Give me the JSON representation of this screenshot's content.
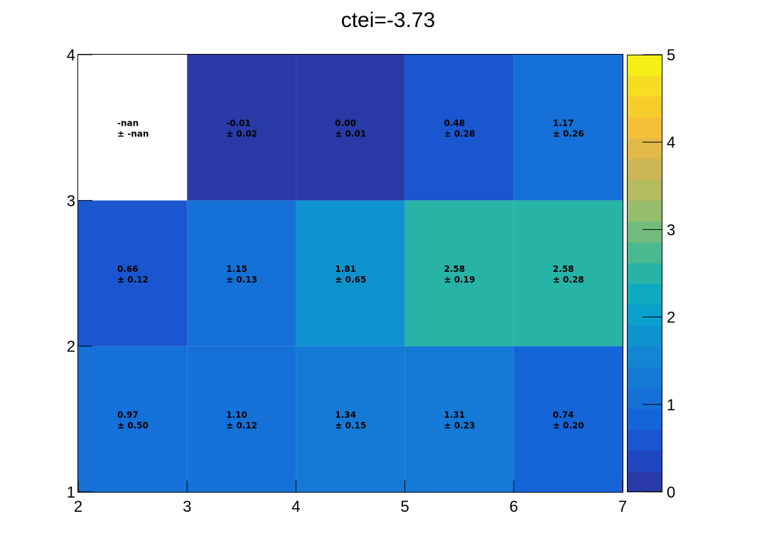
{
  "chart_data": {
    "type": "heatmap",
    "title": "ctei=-3.73",
    "xlabel": "",
    "ylabel": "",
    "x_edges": [
      2,
      3,
      4,
      5,
      6,
      7
    ],
    "y_edges": [
      1,
      2,
      3,
      4
    ],
    "xlim": [
      2,
      7
    ],
    "ylim": [
      1,
      4
    ],
    "x_ticks": [
      "2",
      "3",
      "4",
      "5",
      "6",
      "7"
    ],
    "y_ticks": [
      "1",
      "2",
      "3",
      "4"
    ],
    "cells": [
      [
        {
          "value": 0.97,
          "error": 0.5,
          "text": "0.97",
          "error_text": "± 0.50"
        },
        {
          "value": 1.1,
          "error": 0.12,
          "text": "1.10",
          "error_text": "± 0.12"
        },
        {
          "value": 1.34,
          "error": 0.15,
          "text": "1.34",
          "error_text": "± 0.15"
        },
        {
          "value": 1.31,
          "error": 0.23,
          "text": "1.31",
          "error_text": "± 0.23"
        },
        {
          "value": 0.74,
          "error": 0.2,
          "text": "0.74",
          "error_text": "± 0.20"
        }
      ],
      [
        {
          "value": 0.66,
          "error": 0.12,
          "text": "0.66",
          "error_text": "± 0.12"
        },
        {
          "value": 1.15,
          "error": 0.13,
          "text": "1.15",
          "error_text": "± 0.13"
        },
        {
          "value": 1.81,
          "error": 0.65,
          "text": "1.81",
          "error_text": "± 0.65"
        },
        {
          "value": 2.58,
          "error": 0.19,
          "text": "2.58",
          "error_text": "± 0.19"
        },
        {
          "value": 2.58,
          "error": 0.28,
          "text": "2.58",
          "error_text": "± 0.28"
        }
      ],
      [
        {
          "value": null,
          "error": null,
          "text": "-nan",
          "error_text": "± -nan"
        },
        {
          "value": -0.01,
          "error": 0.02,
          "text": "-0.01",
          "error_text": "± 0.02"
        },
        {
          "value": 0.0,
          "error": 0.01,
          "text": "0.00",
          "error_text": "± 0.01"
        },
        {
          "value": 0.48,
          "error": 0.28,
          "text": "0.48",
          "error_text": "± 0.28"
        },
        {
          "value": 1.17,
          "error": 0.26,
          "text": "1.17",
          "error_text": "± 0.26"
        }
      ]
    ],
    "colorbar": {
      "range": [
        0,
        5
      ],
      "ticks": [
        "0",
        "1",
        "2",
        "3",
        "4",
        "5"
      ],
      "palette": [
        "#2a3ba7",
        "#1f47c2",
        "#1a56cf",
        "#1565d9",
        "#1570d8",
        "#147ad6",
        "#1386d3",
        "#0e93cf",
        "#0ba0cb",
        "#0eaac2",
        "#27b3a6",
        "#4ab98f",
        "#71bb7d",
        "#95bd6c",
        "#b3bc5f",
        "#cdb655",
        "#e2b849",
        "#f5bf38",
        "#f7cd2c",
        "#f7dd21",
        "#f6ef15"
      ]
    }
  }
}
